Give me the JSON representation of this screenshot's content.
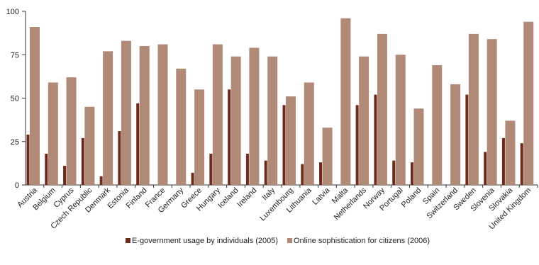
{
  "chart_data": {
    "type": "bar",
    "categories": [
      "Austria",
      "Belgium",
      "Cyprus",
      "Czech Republic",
      "Denmark",
      "Estonia",
      "Finland",
      "France",
      "Germany",
      "Greece",
      "Hungary",
      "Iceland",
      "Ireland",
      "Italy",
      "Luxembourg",
      "Lithuania",
      "Latvia",
      "Malta",
      "Netherlands",
      "Norway",
      "Portugal",
      "Poland",
      "Spain",
      "Switzerland",
      "Sweden",
      "Slovenia",
      "Slovakia",
      "United Kingdom"
    ],
    "series": [
      {
        "name": "E-government usage by individuals (2005)",
        "color": "#6e2a1c",
        "values": [
          29,
          18,
          11,
          27,
          5,
          31,
          47,
          null,
          null,
          7,
          18,
          55,
          18,
          14,
          46,
          12,
          13,
          null,
          46,
          52,
          14,
          13,
          null,
          null,
          52,
          19,
          27,
          24
        ]
      },
      {
        "name": "Online sophistication for citizens (2006)",
        "color": "#b08a77",
        "values": [
          91,
          59,
          62,
          45,
          77,
          83,
          80,
          81,
          67,
          55,
          81,
          74,
          79,
          74,
          51,
          59,
          33,
          96,
          74,
          87,
          75,
          44,
          69,
          58,
          87,
          84,
          37,
          94
        ]
      }
    ],
    "title": "",
    "xlabel": "",
    "ylabel": "",
    "ylim": [
      0,
      100
    ],
    "yticks": [
      0,
      25,
      50,
      75,
      100
    ],
    "grid": false,
    "legend": "bottom"
  }
}
